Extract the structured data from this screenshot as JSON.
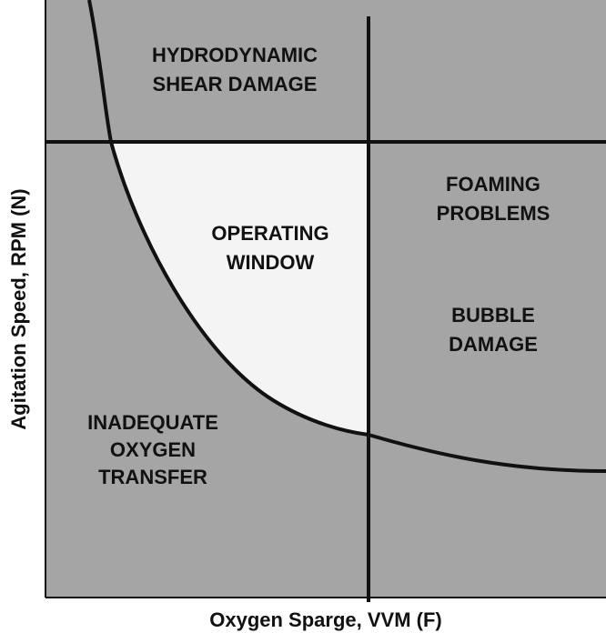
{
  "axes": {
    "x_label": "Oxygen Sparge, VVM (F)",
    "y_label": "Agitation Speed, RPM (N)"
  },
  "regions": [
    {
      "lines": [
        "HYDRODYNAMIC",
        "SHEAR DAMAGE"
      ]
    },
    {
      "lines": [
        "OPERATING",
        "WINDOW"
      ]
    },
    {
      "lines": [
        "FOAMING",
        "PROBLEMS"
      ]
    },
    {
      "lines": [
        "BUBBLE",
        "DAMAGE"
      ]
    },
    {
      "lines": [
        "INADEQUATE",
        "OXYGEN",
        "TRANSFER"
      ]
    }
  ]
}
